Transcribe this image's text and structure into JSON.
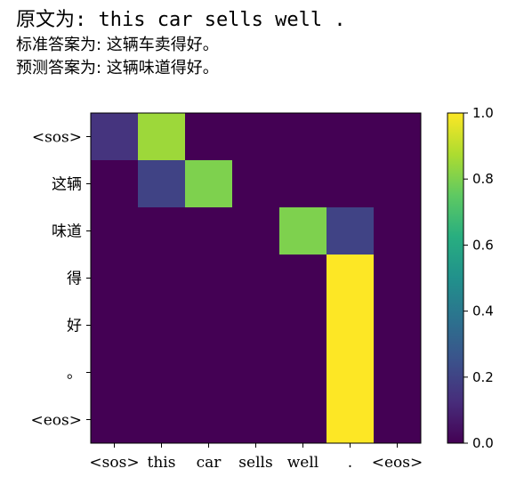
{
  "output": {
    "source_line": "原文为: this car sells well .",
    "reference_line": "标准答案为: 这辆车卖得好。",
    "prediction_line": "预测答案为: 这辆味道得好。"
  },
  "chart_data": {
    "type": "heatmap",
    "x_labels": [
      "<sos>",
      "this",
      "car",
      "sells",
      "well",
      ".",
      "<eos>"
    ],
    "y_labels": [
      "<sos>",
      "这辆",
      "味道",
      "得",
      "好",
      "。",
      "<eos>"
    ],
    "values": [
      [
        0.15,
        0.85,
        0.0,
        0.0,
        0.0,
        0.0,
        0.0
      ],
      [
        0.0,
        0.2,
        0.8,
        0.0,
        0.0,
        0.0,
        0.0
      ],
      [
        0.0,
        0.0,
        0.0,
        0.0,
        0.8,
        0.2,
        0.0
      ],
      [
        0.0,
        0.0,
        0.0,
        0.0,
        0.0,
        1.0,
        0.0
      ],
      [
        0.0,
        0.0,
        0.0,
        0.0,
        0.0,
        1.0,
        0.0
      ],
      [
        0.0,
        0.0,
        0.0,
        0.0,
        0.0,
        1.0,
        0.0
      ],
      [
        0.0,
        0.0,
        0.0,
        0.0,
        0.0,
        1.0,
        0.0
      ]
    ],
    "colorbar": {
      "colormap": "viridis",
      "range": [
        0.0,
        1.0
      ],
      "ticks": [
        "0.0",
        "0.2",
        "0.4",
        "0.6",
        "0.8",
        "1.0"
      ]
    }
  }
}
